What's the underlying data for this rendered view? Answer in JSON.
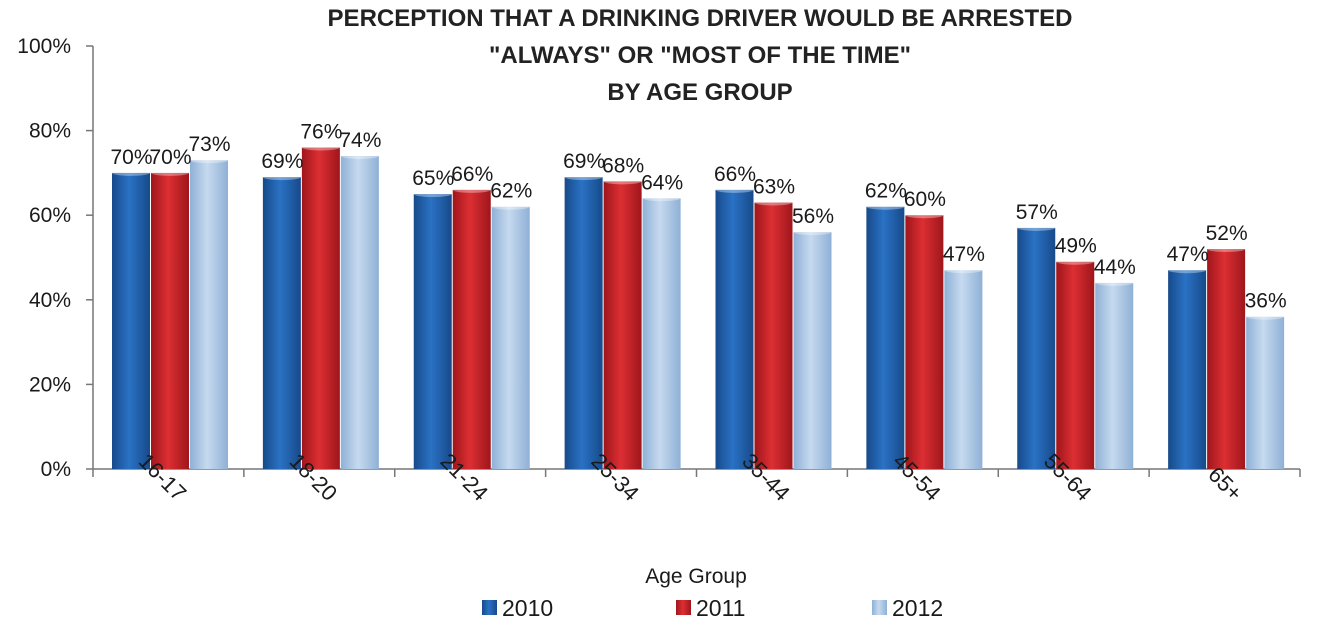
{
  "chart_data": {
    "type": "bar",
    "title": [
      "PERCEPTION  THAT A DRINKING DRIVER WOULD BE ARRESTED",
      "\"ALWAYS\" OR \"MOST OF THE TIME\"",
      "BY AGE GROUP"
    ],
    "xlabel": "Age Group",
    "ylabel": "",
    "ylim": [
      0,
      100
    ],
    "yticks": [
      "0%",
      "20%",
      "40%",
      "60%",
      "80%",
      "100%"
    ],
    "categories": [
      "16-17",
      "18-20",
      "21-24",
      "25-34",
      "35-44",
      "45-54",
      "55-64",
      "65+"
    ],
    "series": [
      {
        "name": "2010",
        "color": "#1f5fae",
        "values": [
          70,
          69,
          65,
          69,
          66,
          62,
          57,
          47
        ],
        "labels": [
          "70%",
          "69%",
          "65%",
          "69%",
          "66%",
          "62%",
          "57%",
          "47%"
        ]
      },
      {
        "name": "2011",
        "color": "#c62026",
        "values": [
          70,
          76,
          66,
          68,
          63,
          60,
          49,
          52
        ],
        "labels": [
          "70%",
          "76%",
          "66%",
          "68%",
          "63%",
          "60%",
          "49%",
          "52%"
        ]
      },
      {
        "name": "2012",
        "color": "#a9c6e6",
        "values": [
          73,
          74,
          62,
          64,
          56,
          47,
          44,
          36
        ],
        "labels": [
          "73%",
          "74%",
          "62%",
          "64%",
          "56%",
          "47%",
          "44%",
          "36%"
        ]
      }
    ],
    "legend": "bottom",
    "grid": false
  }
}
